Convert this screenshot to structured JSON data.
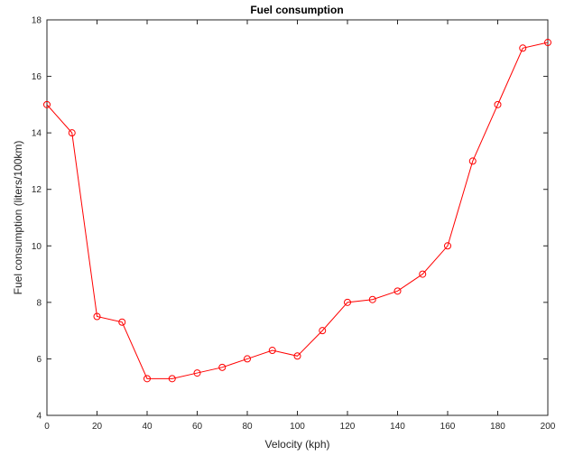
{
  "chart_data": {
    "type": "line",
    "title": "Fuel consumption",
    "xlabel": "Velocity (kph)",
    "ylabel": "Fuel consumption (liters/100km)",
    "xlim": [
      0,
      200
    ],
    "ylim": [
      4,
      18
    ],
    "xticks": [
      0,
      20,
      40,
      60,
      80,
      100,
      120,
      140,
      160,
      180,
      200
    ],
    "yticks": [
      4,
      6,
      8,
      10,
      12,
      14,
      16,
      18
    ],
    "grid": false,
    "marker": "circle",
    "color": "#ff0000",
    "x": [
      0,
      10,
      20,
      30,
      40,
      50,
      60,
      70,
      80,
      90,
      100,
      110,
      120,
      130,
      140,
      150,
      160,
      170,
      180,
      190,
      200
    ],
    "series": [
      {
        "values": [
          15,
          14,
          7.5,
          7.3,
          5.3,
          5.3,
          5.5,
          5.7,
          6.0,
          6.3,
          6.1,
          7.0,
          8.0,
          8.1,
          8.4,
          9.0,
          10.0,
          13.0,
          15.0,
          17.0,
          17.2
        ]
      }
    ]
  }
}
